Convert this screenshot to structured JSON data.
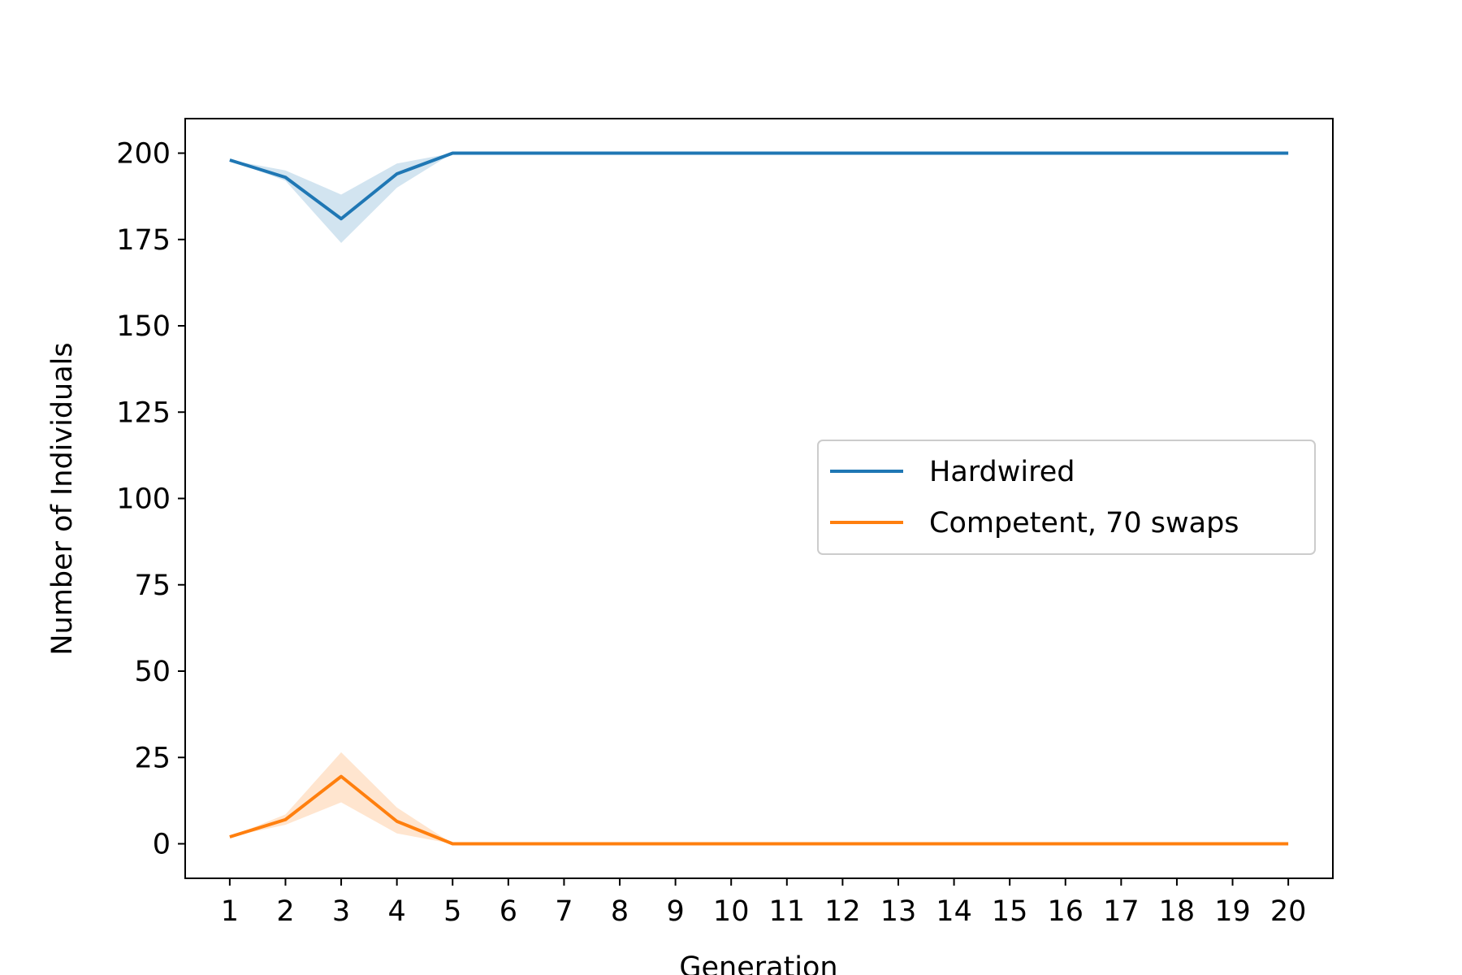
{
  "chart_data": {
    "type": "line",
    "title": "",
    "xlabel": "Generation",
    "ylabel": "Number of Individuals",
    "x": [
      1,
      2,
      3,
      4,
      5,
      6,
      7,
      8,
      9,
      10,
      11,
      12,
      13,
      14,
      15,
      16,
      17,
      18,
      19,
      20
    ],
    "xlim": [
      0.2,
      20.8
    ],
    "ylim": [
      -10,
      210
    ],
    "yticks": [
      0,
      25,
      50,
      75,
      100,
      125,
      150,
      175,
      200
    ],
    "grid": false,
    "legend_position": "center-right",
    "series": [
      {
        "name": "Hardwired",
        "color": "#1f77b4",
        "values": [
          198,
          193,
          181,
          194,
          200,
          200,
          200,
          200,
          200,
          200,
          200,
          200,
          200,
          200,
          200,
          200,
          200,
          200,
          200,
          200
        ],
        "lower": [
          198,
          192,
          174,
          190,
          200,
          200,
          200,
          200,
          200,
          200,
          200,
          200,
          200,
          200,
          200,
          200,
          200,
          200,
          200,
          200
        ],
        "upper": [
          198,
          195,
          188,
          197,
          200,
          200,
          200,
          200,
          200,
          200,
          200,
          200,
          200,
          200,
          200,
          200,
          200,
          200,
          200,
          200
        ]
      },
      {
        "name": "Competent, 70 swaps",
        "color": "#ff7f0e",
        "values": [
          2,
          7,
          19.5,
          6.5,
          0,
          0,
          0,
          0,
          0,
          0,
          0,
          0,
          0,
          0,
          0,
          0,
          0,
          0,
          0,
          0
        ],
        "lower": [
          2,
          5.5,
          12,
          3,
          0,
          0,
          0,
          0,
          0,
          0,
          0,
          0,
          0,
          0,
          0,
          0,
          0,
          0,
          0,
          0
        ],
        "upper": [
          2,
          8.5,
          26.5,
          10.5,
          0,
          0,
          0,
          0,
          0,
          0,
          0,
          0,
          0,
          0,
          0,
          0,
          0,
          0,
          0,
          0
        ]
      }
    ]
  }
}
